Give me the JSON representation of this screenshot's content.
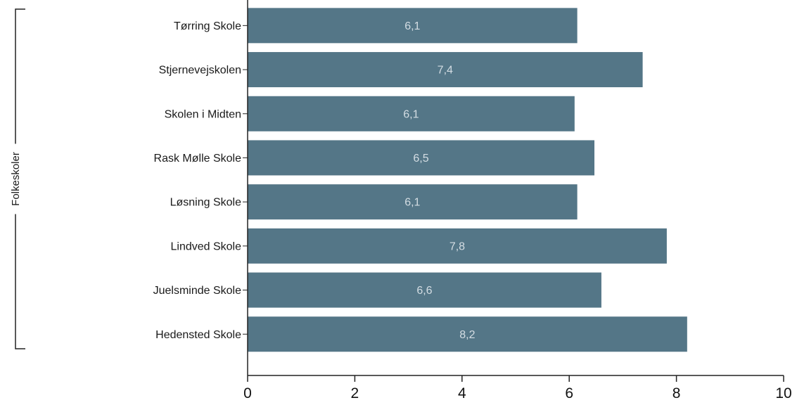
{
  "chart_data": {
    "type": "bar",
    "orientation": "horizontal",
    "title": "",
    "xlabel": "",
    "ylabel": "",
    "group_label": "Folkeskoler",
    "categories": [
      "Tørring Skole",
      "Stjernevejskolen",
      "Skolen i Midten",
      "Rask Mølle Skole",
      "Løsning Skole",
      "Lindved Skole",
      "Juelsminde Skole",
      "Hedensted Skole"
    ],
    "values": [
      6.15,
      7.37,
      6.1,
      6.47,
      6.15,
      7.82,
      6.6,
      8.2
    ],
    "data_labels": [
      "6,1",
      "7,4",
      "6,1",
      "6,5",
      "6,1",
      "7,8",
      "6,6",
      "8,2"
    ],
    "xlim": [
      0,
      10
    ],
    "xticks": [
      0,
      2,
      4,
      6,
      8,
      10
    ],
    "xtick_labels": [
      "0",
      "2",
      "4",
      "6",
      "8",
      "10"
    ],
    "grid": false,
    "legend": "none",
    "bar_color": "#547687",
    "data_label_color": "#d4dde3"
  }
}
